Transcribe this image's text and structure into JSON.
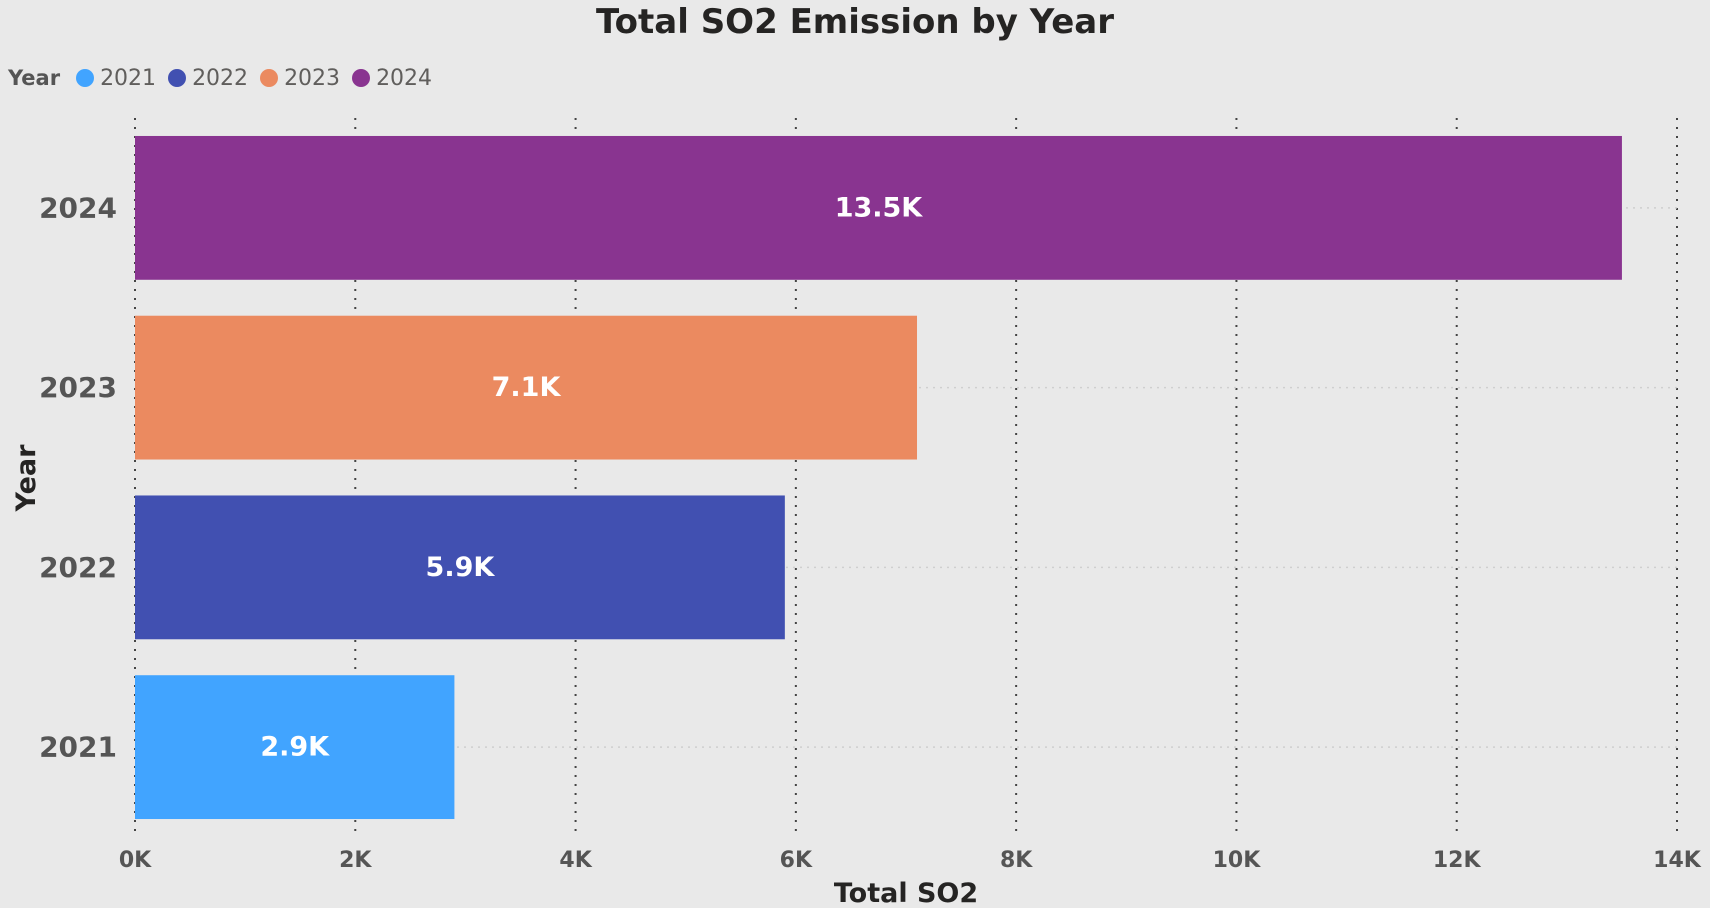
{
  "chart_data": {
    "type": "bar",
    "orientation": "horizontal",
    "title": "Total SO2 Emission by Year",
    "xlabel": "Total SO2",
    "ylabel": "Year",
    "legend": {
      "title": "Year",
      "placement": "top-left",
      "items": [
        {
          "label": "2021",
          "color": "#41a4ff"
        },
        {
          "label": "2022",
          "color": "#4150b1"
        },
        {
          "label": "2023",
          "color": "#eb8a60"
        },
        {
          "label": "2024",
          "color": "#893490"
        }
      ]
    },
    "categories": [
      "2024",
      "2023",
      "2022",
      "2021"
    ],
    "values": [
      13500,
      7100,
      5900,
      2900
    ],
    "data_labels": [
      "13.5K",
      "7.1K",
      "5.9K",
      "2.9K"
    ],
    "bar_colors": [
      "#893490",
      "#eb8a60",
      "#4150b1",
      "#41a4ff"
    ],
    "xlim": [
      0,
      14000
    ],
    "x_ticks": [
      0,
      2000,
      4000,
      6000,
      8000,
      10000,
      12000,
      14000
    ],
    "x_tick_labels": [
      "0K",
      "2K",
      "4K",
      "6K",
      "8K",
      "10K",
      "12K",
      "14K"
    ],
    "grid": true
  }
}
